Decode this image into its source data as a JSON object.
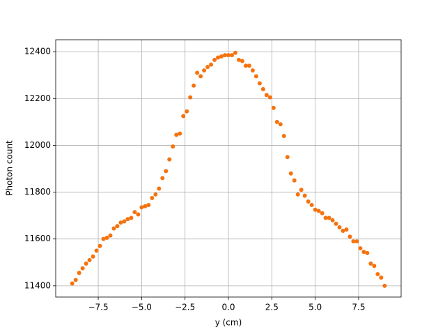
{
  "chart_data": {
    "type": "scatter",
    "xlabel": "y (cm)",
    "ylabel": "Photon count",
    "xlim": [
      -9.95,
      9.95
    ],
    "ylim": [
      11352,
      12451
    ],
    "xticks": [
      {
        "value": -7.5,
        "label": "−7.5"
      },
      {
        "value": -5,
        "label": "−5.0"
      },
      {
        "value": -2.5,
        "label": "−2.5"
      },
      {
        "value": 0,
        "label": "0.0"
      },
      {
        "value": 2.5,
        "label": "2.5"
      },
      {
        "value": 5,
        "label": "5.0"
      },
      {
        "value": 7.5,
        "label": "7.5"
      }
    ],
    "yticks": [
      11400,
      11600,
      11800,
      12000,
      12200,
      12400
    ],
    "grid": true,
    "series": [
      {
        "color": "#f5730f",
        "x": [
          -9.0,
          -8.8,
          -8.6,
          -8.4,
          -8.2,
          -8.0,
          -7.8,
          -7.6,
          -7.4,
          -7.2,
          -7.0,
          -6.8,
          -6.6,
          -6.4,
          -6.2,
          -6.0,
          -5.8,
          -5.6,
          -5.4,
          -5.2,
          -5.0,
          -4.8,
          -4.6,
          -4.4,
          -4.2,
          -4.0,
          -3.8,
          -3.6,
          -3.4,
          -3.2,
          -3.0,
          -2.8,
          -2.6,
          -2.4,
          -2.2,
          -2.0,
          -1.8,
          -1.6,
          -1.4,
          -1.2,
          -1.0,
          -0.8,
          -0.6,
          -0.4,
          -0.2,
          0.0,
          0.2,
          0.4,
          0.6,
          0.8,
          1.0,
          1.2,
          1.4,
          1.6,
          1.8,
          2.0,
          2.2,
          2.4,
          2.6,
          2.8,
          3.0,
          3.2,
          3.4,
          3.6,
          3.8,
          4.0,
          4.2,
          4.4,
          4.6,
          4.8,
          5.0,
          5.2,
          5.4,
          5.6,
          5.8,
          6.0,
          6.2,
          6.4,
          6.6,
          6.8,
          7.0,
          7.2,
          7.4,
          7.6,
          7.8,
          8.0,
          8.2,
          8.4,
          8.6,
          8.8,
          9.0
        ],
        "values": [
          11410,
          11425,
          11455,
          11475,
          11495,
          11510,
          11525,
          11550,
          11570,
          11600,
          11605,
          11615,
          11645,
          11655,
          11670,
          11675,
          11685,
          11690,
          11715,
          11705,
          11735,
          11740,
          11745,
          11775,
          11790,
          11815,
          11860,
          11890,
          11940,
          11995,
          12045,
          12050,
          12125,
          12145,
          12205,
          12255,
          12310,
          12295,
          12320,
          12335,
          12345,
          12365,
          12375,
          12380,
          12385,
          12385,
          12385,
          12395,
          12365,
          12360,
          12340,
          12340,
          12320,
          12295,
          12265,
          12240,
          12215,
          12205,
          12160,
          12100,
          12090,
          12040,
          11950,
          11880,
          11850,
          11790,
          11810,
          11785,
          11760,
          11745,
          11725,
          11720,
          11710,
          11690,
          11690,
          11680,
          11665,
          11650,
          11635,
          11640,
          11610,
          11590,
          11590,
          11560,
          11545,
          11540,
          11495,
          11485,
          11450,
          11435,
          11400
        ]
      }
    ]
  }
}
